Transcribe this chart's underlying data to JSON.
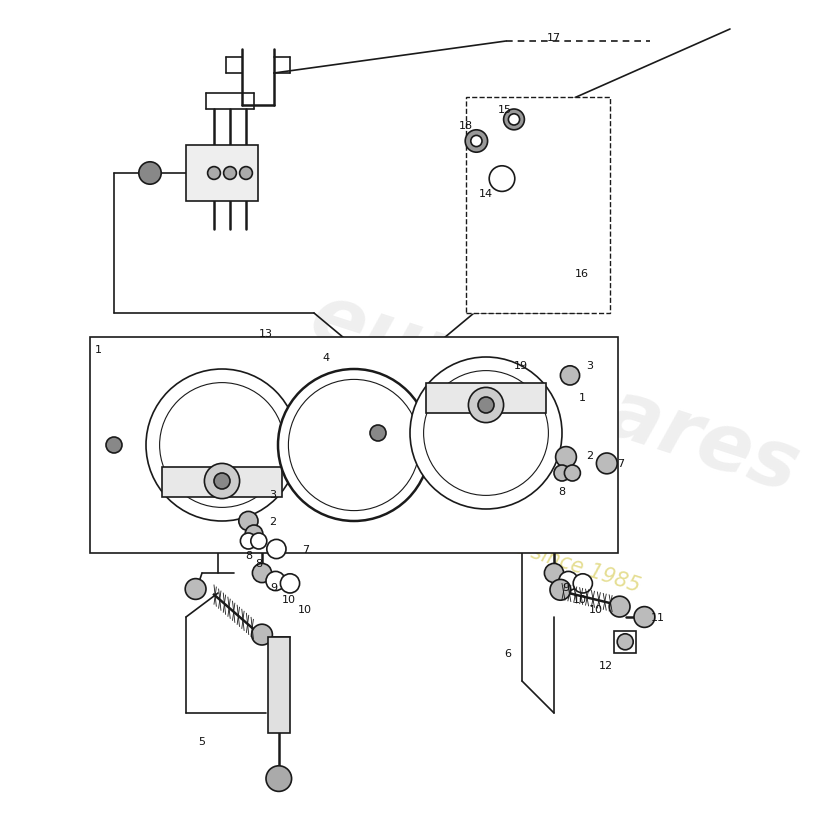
{
  "bg_color": "#ffffff",
  "line_color": "#1a1a1a",
  "label_color": "#111111",
  "watermark_text1": "eurospares",
  "watermark_text2": "a passion for parts since 1985",
  "watermark_color1": "#cccccc",
  "watermark_color2": "#d4c84a"
}
